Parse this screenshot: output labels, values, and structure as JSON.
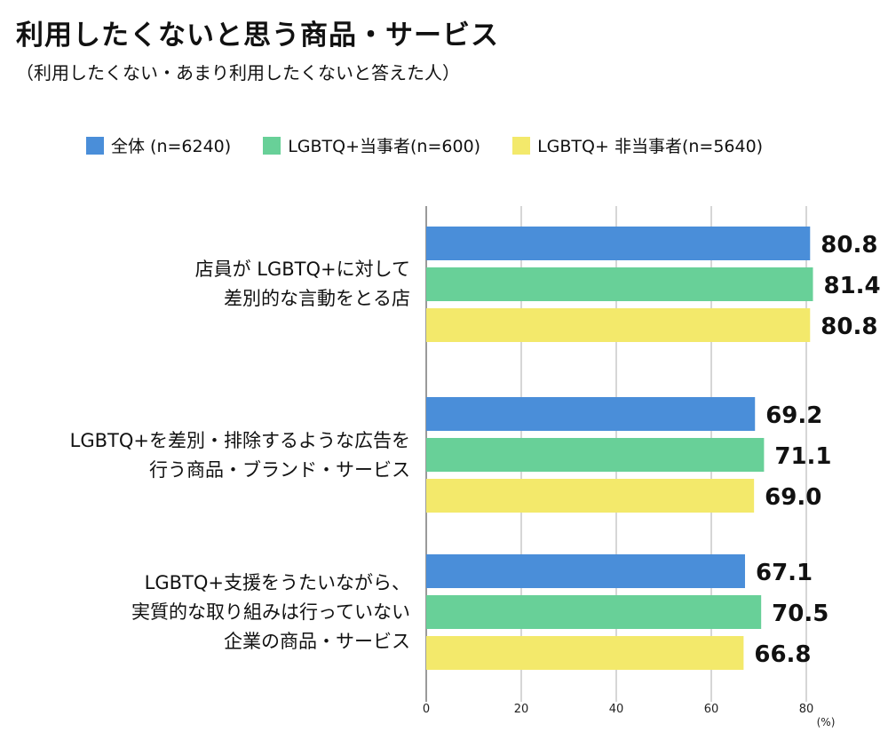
{
  "chart_data": {
    "type": "bar",
    "orientation": "horizontal",
    "title": "利用したくないと思う商品・サービス",
    "subtitle": "（利用したくない・あまり利用したくないと答えた人）",
    "categories": [
      "店員が LGBTQ+に対して\n差別的な言動をとる店",
      "LGBTQ+を差別・排除するような広告を\n行う商品・ブランド・サービス",
      "LGBTQ+支援をうたいながら、\n実質的な取り組みは行っていない\n企業の商品・サービス"
    ],
    "series": [
      {
        "name": "全体 (n=6240)",
        "color": "#4a8ed9",
        "values": [
          80.8,
          69.2,
          67.1
        ]
      },
      {
        "name": "LGBTQ+当事者(n=600)",
        "color": "#68d098",
        "values": [
          81.4,
          71.1,
          70.5
        ]
      },
      {
        "name": "LGBTQ+ 非当事者(n=5640)",
        "color": "#f3e96b",
        "values": [
          80.8,
          69.0,
          66.8
        ]
      }
    ],
    "xlim": [
      0,
      80
    ],
    "xticks": [
      "0",
      "20",
      "40",
      "60",
      "80"
    ],
    "xunit": "(%)",
    "grid": true,
    "legend": "top"
  }
}
